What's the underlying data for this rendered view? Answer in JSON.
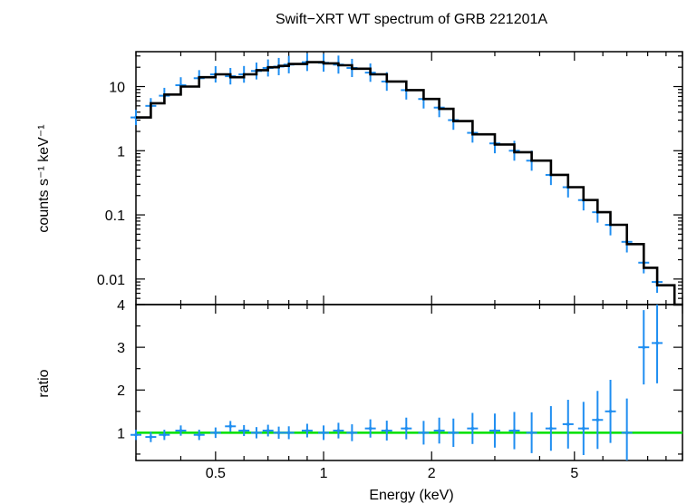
{
  "chart_data": [
    {
      "type": "scatter",
      "panel": "spectrum",
      "title": "Swift−XRT WT spectrum of GRB 221201A",
      "ylabel": "counts s⁻¹ keV⁻¹",
      "xscale": "log",
      "yscale": "log",
      "xlim": [
        0.3,
        10
      ],
      "ylim": [
        0.004,
        35
      ],
      "yticks": [
        0.01,
        0.1,
        1,
        10
      ],
      "ytick_labels": [
        "0.01",
        "0.1",
        "1",
        "10"
      ],
      "colors": {
        "data": "#1f8ef1",
        "model": "#000000"
      },
      "series": [
        {
          "kind": "data",
          "x": [
            0.3,
            0.33,
            0.36,
            0.4,
            0.45,
            0.5,
            0.55,
            0.6,
            0.65,
            0.7,
            0.75,
            0.8,
            0.9,
            1.0,
            1.1,
            1.2,
            1.35,
            1.5,
            1.7,
            1.9,
            2.1,
            2.3,
            2.6,
            3.0,
            3.4,
            3.8,
            4.3,
            4.8,
            5.3,
            5.8,
            6.3,
            7.0,
            7.8,
            8.5
          ],
          "y": [
            3.3,
            5.0,
            7.2,
            10.5,
            13.5,
            15.5,
            14.5,
            15.5,
            17.5,
            19.5,
            20.5,
            22.0,
            24.0,
            23.5,
            22.0,
            19.5,
            16.5,
            12.0,
            8.8,
            6.4,
            4.7,
            3.0,
            1.9,
            1.3,
            1.0,
            0.7,
            0.42,
            0.27,
            0.17,
            0.11,
            0.07,
            0.038,
            0.018,
            0.009
          ]
        },
        {
          "kind": "model",
          "x": [
            0.3,
            0.33,
            0.36,
            0.4,
            0.45,
            0.5,
            0.55,
            0.6,
            0.65,
            0.7,
            0.75,
            0.8,
            0.9,
            1.0,
            1.1,
            1.2,
            1.35,
            1.5,
            1.7,
            1.9,
            2.1,
            2.3,
            2.6,
            3.0,
            3.4,
            3.8,
            4.3,
            4.8,
            5.3,
            5.8,
            6.3,
            7.0,
            7.8,
            8.5,
            9.5
          ],
          "y": [
            3.3,
            5.5,
            7.5,
            10.0,
            14.0,
            15.5,
            14.0,
            15.5,
            18.0,
            20.0,
            21.0,
            22.5,
            24.0,
            23.0,
            21.5,
            19.0,
            15.5,
            12.0,
            8.8,
            6.4,
            4.5,
            2.9,
            1.8,
            1.25,
            0.95,
            0.7,
            0.42,
            0.27,
            0.17,
            0.11,
            0.07,
            0.035,
            0.015,
            0.008,
            0.004
          ]
        }
      ]
    },
    {
      "type": "scatter",
      "panel": "ratio",
      "xlabel": "Energy (keV)",
      "ylabel": "ratio",
      "xscale": "log",
      "yscale": "linear",
      "xlim": [
        0.3,
        10
      ],
      "ylim": [
        0.35,
        4
      ],
      "xticks": [
        0.5,
        1,
        2,
        5
      ],
      "xtick_labels": [
        "0.5",
        "1",
        "2",
        "5"
      ],
      "yticks": [
        1,
        2,
        3,
        4
      ],
      "ytick_labels": [
        "1",
        "2",
        "3",
        "4"
      ],
      "reference_line": 1,
      "colors": {
        "data": "#1f8ef1",
        "reference": "#00e000"
      },
      "series": [
        {
          "kind": "ratio",
          "x": [
            0.3,
            0.33,
            0.36,
            0.4,
            0.45,
            0.5,
            0.55,
            0.6,
            0.65,
            0.7,
            0.75,
            0.8,
            0.9,
            1.0,
            1.1,
            1.2,
            1.35,
            1.5,
            1.7,
            1.9,
            2.1,
            2.3,
            2.6,
            3.0,
            3.4,
            3.8,
            4.3,
            4.8,
            5.3,
            5.8,
            6.3,
            7.0,
            7.8,
            8.5
          ],
          "y": [
            0.95,
            0.9,
            0.95,
            1.05,
            0.95,
            1.0,
            1.15,
            1.05,
            1.0,
            1.05,
            1.0,
            1.0,
            1.05,
            1.0,
            1.05,
            1.0,
            1.1,
            1.05,
            1.1,
            1.0,
            1.05,
            1.0,
            1.1,
            1.05,
            1.05,
            1.0,
            1.1,
            1.2,
            1.1,
            1.3,
            1.5,
            1.0,
            3.0,
            3.1
          ]
        }
      ]
    }
  ]
}
